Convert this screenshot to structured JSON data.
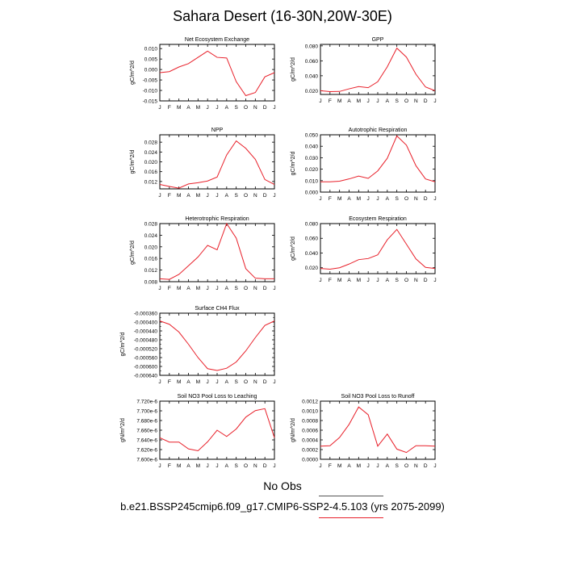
{
  "title": "Sahara Desert (16-30N,20W-30E)",
  "legend": {
    "obs_label": "No Obs",
    "model_label": "b.e21.BSSP245cmip6.f09_g17.CMIP6-SSP2-4.5.103 (yrs 2075-2099)",
    "model_color": "#e8202a",
    "obs_line_color": "#555555"
  },
  "months": [
    "J",
    "F",
    "M",
    "A",
    "M",
    "J",
    "J",
    "A",
    "S",
    "O",
    "N",
    "D",
    "J"
  ],
  "line_color": "#e8202a",
  "chart_data": [
    {
      "type": "line",
      "title": "Net Ecosystem Exchange",
      "ylabel": "gC/m^2/d",
      "ylim": [
        -0.015,
        0.012
      ],
      "yticks": [
        0.01,
        0.005,
        0.0,
        -0.005,
        -0.01,
        -0.015
      ],
      "yticklabels": [
        "0.010",
        "0.005",
        "0.000",
        "-0.005",
        "-0.010",
        "-0.015"
      ],
      "values": [
        -0.0015,
        -0.001,
        0.0012,
        0.0028,
        0.0058,
        0.0088,
        0.0058,
        0.0055,
        -0.0058,
        -0.0125,
        -0.011,
        -0.0035,
        -0.0015
      ]
    },
    {
      "type": "line",
      "title": "GPP",
      "ylabel": "gC/m^2/d",
      "ylim": [
        0.015,
        0.082
      ],
      "yticks": [
        0.08,
        0.06,
        0.04,
        0.02
      ],
      "yticklabels": [
        "0.080",
        "0.060",
        "0.040",
        "0.020"
      ],
      "values": [
        0.02,
        0.0188,
        0.019,
        0.0225,
        0.0255,
        0.024,
        0.032,
        0.052,
        0.077,
        0.065,
        0.042,
        0.025,
        0.02
      ]
    },
    {
      "type": "line",
      "title": "NPP",
      "ylabel": "gC/m^2/d",
      "ylim": [
        0.009,
        0.031
      ],
      "yticks": [
        0.028,
        0.024,
        0.02,
        0.016,
        0.012
      ],
      "yticklabels": [
        "0.028",
        "0.024",
        "0.020",
        "0.016",
        "0.012"
      ],
      "values": [
        0.0108,
        0.01,
        0.0093,
        0.011,
        0.0115,
        0.0122,
        0.0138,
        0.0228,
        0.0285,
        0.0255,
        0.021,
        0.0128,
        0.0108
      ]
    },
    {
      "type": "line",
      "title": "Autotrophic Respiration",
      "ylabel": "gC/m^2/d",
      "ylim": [
        0.0,
        0.05
      ],
      "yticks": [
        0.05,
        0.04,
        0.03,
        0.02,
        0.01,
        0.0
      ],
      "yticklabels": [
        "0.050",
        "0.040",
        "0.030",
        "0.020",
        "0.010",
        "0.000"
      ],
      "values": [
        0.009,
        0.009,
        0.0095,
        0.0115,
        0.014,
        0.012,
        0.0185,
        0.0295,
        0.049,
        0.041,
        0.023,
        0.0115,
        0.009
      ]
    },
    {
      "type": "line",
      "title": "Heterotrophic Respiration",
      "ylabel": "gC/m^2/d",
      "ylim": [
        0.008,
        0.028
      ],
      "yticks": [
        0.028,
        0.024,
        0.02,
        0.016,
        0.012,
        0.008
      ],
      "yticklabels": [
        "0.028",
        "0.024",
        "0.020",
        "0.016",
        "0.012",
        "0.008"
      ],
      "values": [
        0.009,
        0.0088,
        0.0105,
        0.0135,
        0.0165,
        0.0205,
        0.019,
        0.028,
        0.023,
        0.0125,
        0.0092,
        0.009,
        0.009
      ]
    },
    {
      "type": "line",
      "title": "Ecosystem Respiration",
      "ylabel": "gC/m^2/d",
      "ylim": [
        0.012,
        0.08
      ],
      "yticks": [
        0.08,
        0.06,
        0.04,
        0.02
      ],
      "yticklabels": [
        "0.080",
        "0.060",
        "0.040",
        "0.020"
      ],
      "values": [
        0.019,
        0.018,
        0.02,
        0.025,
        0.031,
        0.0325,
        0.0375,
        0.058,
        0.072,
        0.052,
        0.032,
        0.0205,
        0.019
      ]
    },
    {
      "type": "line",
      "title": "Surface CH4 Flux",
      "ylabel": "gC/m^2/d",
      "ylim": [
        -0.00064,
        -0.00036
      ],
      "yticks": [
        -0.00036,
        -0.0004,
        -0.00044,
        -0.00048,
        -0.00052,
        -0.00056,
        -0.0006,
        -0.00064
      ],
      "yticklabels": [
        "-0.000360",
        "-0.000400",
        "-0.000440",
        "-0.000480",
        "-0.000520",
        "-0.000560",
        "-0.000600",
        "-0.000640"
      ],
      "minorticks": [
        -0.00038,
        -0.00042,
        -0.00046,
        -0.0005,
        -0.00054,
        -0.00058,
        -0.00062
      ],
      "values": [
        -0.000395,
        -0.00041,
        -0.000445,
        -0.0005,
        -0.00056,
        -0.00061,
        -0.000618,
        -0.000608,
        -0.00058,
        -0.00053,
        -0.00047,
        -0.000415,
        -0.000395
      ]
    },
    {
      "type": "line",
      "title": "Soil NO3 Pool Loss to Leaching",
      "ylabel": "gN/m^2/d",
      "ylim": [
        7.6e-06,
        7.72e-06
      ],
      "yticks": [
        7.72e-06,
        7.7e-06,
        7.68e-06,
        7.66e-06,
        7.64e-06,
        7.62e-06,
        7.6e-06
      ],
      "yticklabels": [
        "7.720e-6",
        "7.700e-6",
        "7.680e-6",
        "7.660e-6",
        "7.640e-6",
        "7.620e-6",
        "7.600e-6"
      ],
      "values": [
        7.6445e-06,
        7.6355e-06,
        7.6355e-06,
        7.6215e-06,
        7.6175e-06,
        7.636e-06,
        7.66e-06,
        7.647e-06,
        7.6625e-06,
        7.687e-06,
        7.7005e-06,
        7.7045e-06,
        7.6445e-06
      ]
    },
    {
      "type": "line",
      "title": "Soil NO3 Pool Loss to Runoff",
      "ylabel": "gN/m^2/d",
      "ylim": [
        0.0,
        0.0012
      ],
      "yticks": [
        0.0012,
        0.001,
        0.0008,
        0.0006,
        0.0004,
        0.0002,
        0.0
      ],
      "yticklabels": [
        "0.0012",
        "0.0010",
        "0.0008",
        "0.0006",
        "0.0004",
        "0.0002",
        "0.0000"
      ],
      "values": [
        0.00027,
        0.00028,
        0.00045,
        0.00072,
        0.00108,
        0.00092,
        0.00027,
        0.00052,
        0.00021,
        0.00014,
        0.00028,
        0.00028,
        0.00027
      ]
    }
  ]
}
